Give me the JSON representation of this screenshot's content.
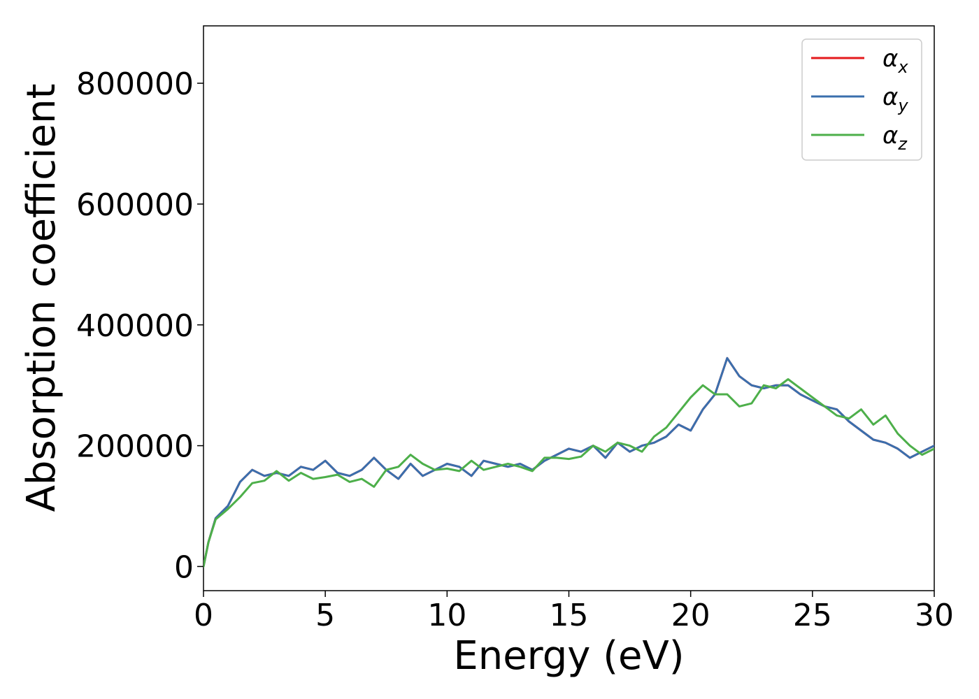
{
  "chart_data": {
    "type": "line",
    "title": "",
    "xlabel": "Energy (eV)",
    "ylabel": "Absorption coefficient",
    "xlim": [
      0,
      30
    ],
    "ylim": [
      -40000,
      895000
    ],
    "xticks": [
      0,
      5,
      10,
      15,
      20,
      25,
      30
    ],
    "yticks": [
      0,
      200000,
      400000,
      600000,
      800000
    ],
    "grid": false,
    "legend": {
      "position": "top-right"
    },
    "series": [
      {
        "name": "α",
        "subscript": "x",
        "color": "#e41a1c",
        "x": [
          0,
          0.2,
          0.5,
          1.0,
          1.5,
          2.0,
          2.5,
          3.0,
          3.5,
          4.0,
          4.5,
          5.0,
          5.5,
          6.0,
          6.5,
          7.0,
          7.5,
          8.0,
          8.5,
          9.0,
          9.5,
          10.0,
          10.5,
          11.0,
          11.5,
          12.0,
          12.5,
          13.0,
          13.5,
          14.0,
          14.5,
          15.0,
          15.5,
          16.0,
          16.5,
          17.0,
          17.5,
          18.0,
          18.5,
          19.0,
          19.5,
          20.0,
          20.5,
          21.0,
          21.5,
          22.0,
          22.5,
          23.0,
          23.5,
          24.0,
          24.5,
          25.0,
          25.5,
          26.0,
          26.5,
          27.0,
          27.5,
          28.0,
          28.5,
          29.0,
          29.5,
          30.0
        ],
        "y": [
          0,
          40000,
          80000,
          100000,
          140000,
          160000,
          150000,
          155000,
          150000,
          165000,
          160000,
          175000,
          155000,
          150000,
          160000,
          180000,
          160000,
          145000,
          170000,
          150000,
          160000,
          170000,
          165000,
          150000,
          175000,
          170000,
          165000,
          170000,
          160000,
          175000,
          185000,
          195000,
          190000,
          200000,
          180000,
          205000,
          190000,
          200000,
          205000,
          215000,
          235000,
          225000,
          260000,
          285000,
          345000,
          315000,
          300000,
          295000,
          300000,
          300000,
          285000,
          275000,
          265000,
          260000,
          240000,
          225000,
          210000,
          205000,
          195000,
          180000,
          190000,
          200000
        ]
      },
      {
        "name": "α",
        "subscript": "y",
        "color": "#3a6fad",
        "x": [
          0,
          0.2,
          0.5,
          1.0,
          1.5,
          2.0,
          2.5,
          3.0,
          3.5,
          4.0,
          4.5,
          5.0,
          5.5,
          6.0,
          6.5,
          7.0,
          7.5,
          8.0,
          8.5,
          9.0,
          9.5,
          10.0,
          10.5,
          11.0,
          11.5,
          12.0,
          12.5,
          13.0,
          13.5,
          14.0,
          14.5,
          15.0,
          15.5,
          16.0,
          16.5,
          17.0,
          17.5,
          18.0,
          18.5,
          19.0,
          19.5,
          20.0,
          20.5,
          21.0,
          21.5,
          22.0,
          22.5,
          23.0,
          23.5,
          24.0,
          24.5,
          25.0,
          25.5,
          26.0,
          26.5,
          27.0,
          27.5,
          28.0,
          28.5,
          29.0,
          29.5,
          30.0
        ],
        "y": [
          0,
          40000,
          80000,
          100000,
          140000,
          160000,
          150000,
          155000,
          150000,
          165000,
          160000,
          175000,
          155000,
          150000,
          160000,
          180000,
          160000,
          145000,
          170000,
          150000,
          160000,
          170000,
          165000,
          150000,
          175000,
          170000,
          165000,
          170000,
          160000,
          175000,
          185000,
          195000,
          190000,
          200000,
          180000,
          205000,
          190000,
          200000,
          205000,
          215000,
          235000,
          225000,
          260000,
          285000,
          345000,
          315000,
          300000,
          295000,
          300000,
          300000,
          285000,
          275000,
          265000,
          260000,
          240000,
          225000,
          210000,
          205000,
          195000,
          180000,
          190000,
          200000
        ]
      },
      {
        "name": "α",
        "subscript": "z",
        "color": "#4daf4a",
        "x": [
          0,
          0.2,
          0.5,
          1.0,
          1.5,
          2.0,
          2.5,
          3.0,
          3.5,
          4.0,
          4.5,
          5.0,
          5.5,
          6.0,
          6.5,
          7.0,
          7.5,
          8.0,
          8.5,
          9.0,
          9.5,
          10.0,
          10.5,
          11.0,
          11.5,
          12.0,
          12.5,
          13.0,
          13.5,
          14.0,
          14.5,
          15.0,
          15.5,
          16.0,
          16.5,
          17.0,
          17.5,
          18.0,
          18.5,
          19.0,
          19.5,
          20.0,
          20.5,
          21.0,
          21.5,
          22.0,
          22.5,
          23.0,
          23.5,
          24.0,
          24.5,
          25.0,
          25.5,
          26.0,
          26.5,
          27.0,
          27.5,
          28.0,
          28.5,
          29.0,
          29.5,
          30.0
        ],
        "y": [
          0,
          40000,
          78000,
          95000,
          115000,
          138000,
          142000,
          158000,
          142000,
          155000,
          145000,
          148000,
          152000,
          140000,
          145000,
          132000,
          160000,
          165000,
          185000,
          170000,
          160000,
          162000,
          158000,
          175000,
          160000,
          165000,
          170000,
          165000,
          158000,
          180000,
          180000,
          178000,
          182000,
          200000,
          190000,
          205000,
          200000,
          190000,
          215000,
          230000,
          255000,
          280000,
          300000,
          285000,
          285000,
          265000,
          270000,
          300000,
          295000,
          310000,
          295000,
          280000,
          265000,
          250000,
          245000,
          260000,
          235000,
          250000,
          220000,
          200000,
          185000,
          195000
        ]
      }
    ]
  }
}
